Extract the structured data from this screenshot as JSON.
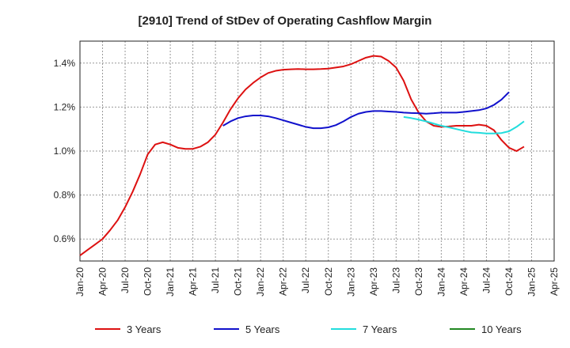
{
  "chart_data": {
    "type": "line",
    "title": "[2910]  Trend of StDev of Operating Cashflow Margin",
    "xlabel": "",
    "ylabel": "",
    "x_ticks": [
      "Jan-20",
      "Apr-20",
      "Jul-20",
      "Oct-20",
      "Jan-21",
      "Apr-21",
      "Jul-21",
      "Oct-21",
      "Jan-22",
      "Apr-22",
      "Jul-22",
      "Oct-22",
      "Jan-23",
      "Apr-23",
      "Jul-23",
      "Oct-23",
      "Jan-24",
      "Apr-24",
      "Jul-24",
      "Oct-24",
      "Jan-25",
      "Apr-25"
    ],
    "y_ticks": [
      "0.6%",
      "0.8%",
      "1.0%",
      "1.2%",
      "1.4%"
    ],
    "ylim": [
      0.5,
      1.5
    ],
    "y_unit": "%",
    "grid": true,
    "legend_position": "bottom",
    "series": [
      {
        "name": "3 Years",
        "color": "#dd1111",
        "start": "Jan-20",
        "values": [
          0.525,
          0.55,
          0.575,
          0.6,
          0.64,
          0.685,
          0.745,
          0.815,
          0.895,
          0.985,
          1.03,
          1.04,
          1.03,
          1.015,
          1.01,
          1.01,
          1.02,
          1.04,
          1.075,
          1.13,
          1.19,
          1.24,
          1.28,
          1.31,
          1.335,
          1.355,
          1.365,
          1.37,
          1.372,
          1.373,
          1.372,
          1.372,
          1.373,
          1.375,
          1.38,
          1.385,
          1.395,
          1.41,
          1.425,
          1.433,
          1.43,
          1.41,
          1.38,
          1.32,
          1.235,
          1.175,
          1.135,
          1.115,
          1.11,
          1.112,
          1.115,
          1.115,
          1.115,
          1.12,
          1.115,
          1.095,
          1.05,
          1.015,
          1.0,
          1.02
        ]
      },
      {
        "name": "5 Years",
        "color": "#1111cc",
        "start": "Jan-20",
        "values": [
          null,
          null,
          null,
          null,
          null,
          null,
          null,
          null,
          null,
          null,
          null,
          null,
          null,
          null,
          null,
          null,
          null,
          null,
          null,
          1.115,
          1.135,
          1.15,
          1.158,
          1.162,
          1.162,
          1.158,
          1.15,
          1.14,
          1.13,
          1.12,
          1.11,
          1.104,
          1.104,
          1.108,
          1.118,
          1.135,
          1.155,
          1.17,
          1.178,
          1.182,
          1.182,
          1.18,
          1.178,
          1.175,
          1.173,
          1.172,
          1.17,
          1.172,
          1.175,
          1.175,
          1.175,
          1.178,
          1.182,
          1.186,
          1.194,
          1.21,
          1.234,
          1.268
        ]
      },
      {
        "name": "7 Years",
        "color": "#22dddd",
        "start": "Jan-20",
        "values": [
          null,
          null,
          null,
          null,
          null,
          null,
          null,
          null,
          null,
          null,
          null,
          null,
          null,
          null,
          null,
          null,
          null,
          null,
          null,
          null,
          null,
          null,
          null,
          null,
          null,
          null,
          null,
          null,
          null,
          null,
          null,
          null,
          null,
          null,
          null,
          null,
          null,
          null,
          null,
          null,
          null,
          null,
          null,
          1.155,
          1.15,
          1.143,
          1.135,
          1.125,
          1.115,
          1.108,
          1.1,
          1.092,
          1.085,
          1.083,
          1.08,
          1.08,
          1.082,
          1.09,
          1.11,
          1.135
        ]
      },
      {
        "name": "10 Years",
        "color": "#228822",
        "start": "Jan-20",
        "values": []
      }
    ]
  }
}
